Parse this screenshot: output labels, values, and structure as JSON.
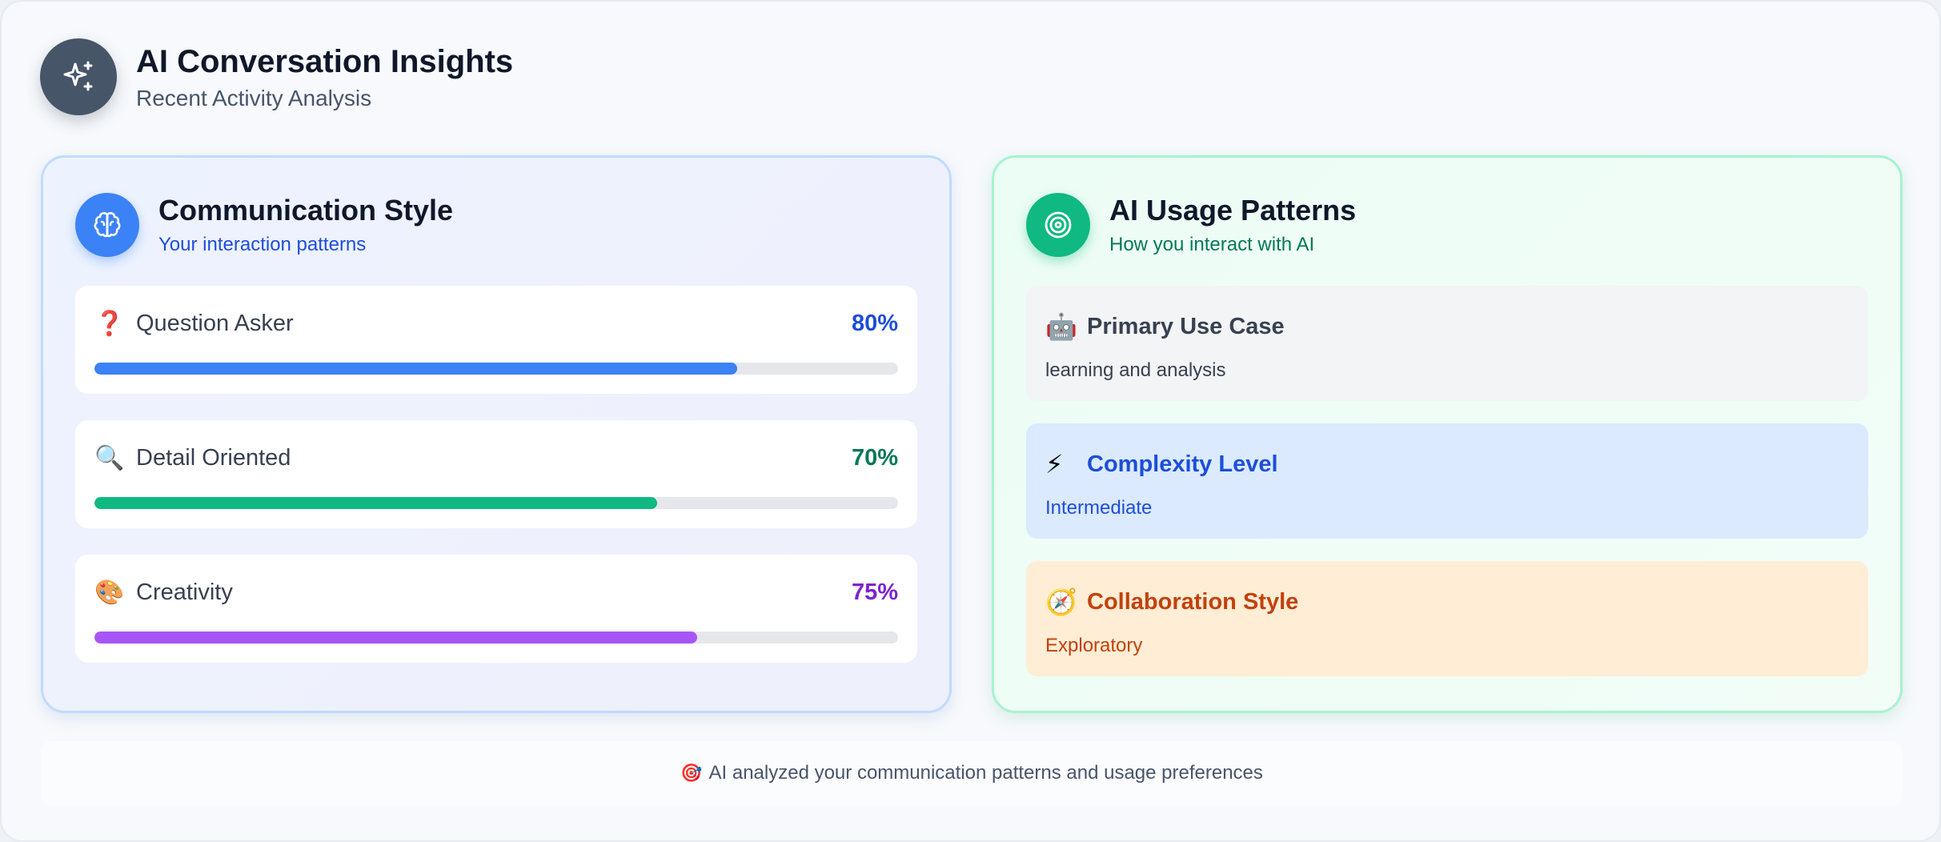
{
  "header": {
    "title": "AI Conversation Insights",
    "subtitle": "Recent Activity Analysis",
    "icon": "sparkles-icon"
  },
  "communication": {
    "title": "Communication Style",
    "subtitle": "Your interaction patterns",
    "icon": "brain-icon",
    "metrics": [
      {
        "emoji": "❓",
        "label": "Question Asker",
        "value": "80%",
        "percent": 80,
        "color": "#3b82f6",
        "value_color": "#1d4ed8"
      },
      {
        "emoji": "🔍",
        "label": "Detail Oriented",
        "value": "70%",
        "percent": 70,
        "color": "#10b981",
        "value_color": "#047857"
      },
      {
        "emoji": "🎨",
        "label": "Creativity",
        "value": "75%",
        "percent": 75,
        "color": "#a855f7",
        "value_color": "#7e22ce"
      }
    ]
  },
  "usage": {
    "title": "AI Usage Patterns",
    "subtitle": "How you interact with AI",
    "icon": "target-icon",
    "cards": [
      {
        "emoji": "🤖",
        "label": "Primary Use Case",
        "value": "learning and analysis",
        "bg": "#f3f4f6",
        "label_color": "#374151",
        "value_color": "#374151"
      },
      {
        "emoji": "⚡",
        "label": "Complexity Level",
        "value": "Intermediate",
        "bg": "#dbeafe",
        "label_color": "#1d4ed8",
        "value_color": "#1d4ed8"
      },
      {
        "emoji": "🧭",
        "label": "Collaboration Style",
        "value": "Exploratory",
        "bg": "#ffedd5",
        "label_color": "#c2410c",
        "value_color": "#c2410c"
      }
    ]
  },
  "footer": {
    "emoji": "🎯",
    "text": "AI analyzed your communication patterns and usage preferences"
  }
}
